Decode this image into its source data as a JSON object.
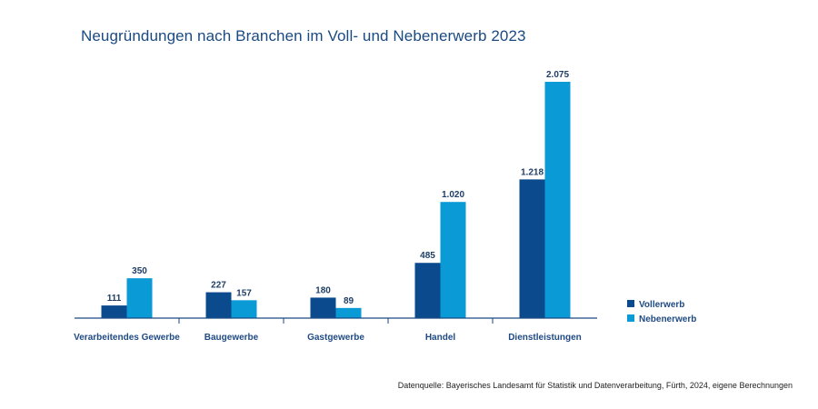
{
  "chart_data": {
    "type": "bar",
    "title": "Neugründungen nach Branchen im Voll- und Nebenerwerb 2023",
    "categories": [
      "Verarbeitendes Gewerbe",
      "Baugewerbe",
      "Gastgewerbe",
      "Handel",
      "Dienstleistungen"
    ],
    "series": [
      {
        "name": "Vollerwerb",
        "color": "#0b4a8c",
        "values": [
          111,
          227,
          180,
          485,
          1218
        ],
        "labels": [
          "111",
          "227",
          "180",
          "485",
          "1.218"
        ]
      },
      {
        "name": "Nebenerwerb",
        "color": "#0a9ad6",
        "values": [
          350,
          157,
          89,
          1020,
          2075
        ],
        "labels": [
          "350",
          "157",
          "89",
          "1.020",
          "2.075"
        ]
      }
    ],
    "xlabel": "",
    "ylabel": "",
    "ylim": [
      0,
      2075
    ],
    "grid": false,
    "legend_position": "right",
    "axis_color": "#1a4a82"
  },
  "source": "Datenquelle: Bayerisches Landesamt für Statistik und Datenverarbeitung, Fürth, 2024, eigene Berechnungen"
}
